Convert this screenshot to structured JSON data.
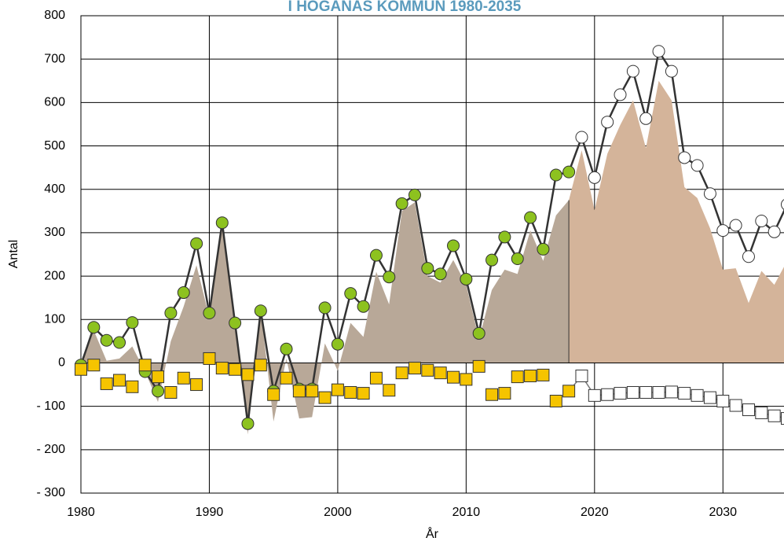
{
  "chart_data": {
    "type": "line",
    "title": "I HÖGANÄS KOMMUN 1980-2035",
    "x_label": "År",
    "y_label": "Antal",
    "x": [
      1980,
      1981,
      1982,
      1983,
      1984,
      1985,
      1986,
      1987,
      1988,
      1989,
      1990,
      1991,
      1992,
      1993,
      1994,
      1995,
      1996,
      1997,
      1998,
      1999,
      2000,
      2001,
      2002,
      2003,
      2004,
      2005,
      2006,
      2007,
      2008,
      2009,
      2010,
      2011,
      2012,
      2013,
      2014,
      2015,
      2016,
      2017,
      2018,
      2019,
      2020,
      2021,
      2022,
      2023,
      2024,
      2025,
      2026,
      2027,
      2028,
      2029,
      2030,
      2031,
      2032,
      2033,
      2034,
      2035
    ],
    "projection_start": 2019,
    "area": {
      "color_history": "#b8a898",
      "color_forecast": "#d4b49a",
      "values": [
        5,
        75,
        5,
        10,
        38,
        -20,
        -90,
        50,
        130,
        225,
        105,
        320,
        105,
        -165,
        125,
        -135,
        10,
        -128,
        -125,
        45,
        -18,
        92,
        60,
        210,
        135,
        350,
        370,
        200,
        185,
        237,
        180,
        55,
        168,
        215,
        205,
        305,
        235,
        340,
        375,
        490,
        352,
        482,
        548,
        605,
        495,
        650,
        605,
        405,
        380,
        310,
        215,
        218,
        138,
        212,
        180,
        235
      ]
    },
    "series": [
      {
        "marker": "circle",
        "color_history": "#8dc21f",
        "color_forecast": "#ffffff",
        "line": true,
        "values": [
          -5,
          82,
          52,
          47,
          93,
          -20,
          -65,
          115,
          162,
          275,
          115,
          323,
          92,
          -140,
          120,
          -65,
          32,
          -60,
          -60,
          127,
          43,
          160,
          130,
          248,
          198,
          367,
          387,
          218,
          205,
          270,
          193,
          68,
          237,
          290,
          240,
          335,
          262,
          433,
          440,
          520,
          427,
          555,
          618,
          672,
          563,
          718,
          672,
          473,
          455,
          390,
          305,
          317,
          245,
          327,
          302,
          365
        ]
      },
      {
        "marker": "square",
        "color_history": "#f5c400",
        "color_forecast": "#ffffff",
        "line": false,
        "values": [
          -15,
          -5,
          -48,
          -40,
          -55,
          -5,
          -32,
          -68,
          -35,
          -50,
          10,
          -12,
          -15,
          -27,
          -5,
          -73,
          -35,
          -65,
          -65,
          -80,
          -62,
          -68,
          -70,
          -35,
          -63,
          -23,
          -12,
          -17,
          -23,
          -33,
          -38,
          -8,
          -73,
          -70,
          -32,
          -30,
          -28,
          -88,
          -65,
          -30,
          -75,
          -73,
          -70,
          -68,
          -68,
          -68,
          -67,
          -70,
          -75,
          -80,
          -88,
          -98,
          -108,
          -115,
          -122,
          -128
        ]
      }
    ],
    "xlim": [
      1980,
      2035
    ],
    "xticks": [
      1980,
      1990,
      2000,
      2010,
      2020,
      2030
    ],
    "ylim": [
      -300,
      800
    ],
    "yticks": [
      {
        "value": -300,
        "label": "- 300"
      },
      {
        "value": -200,
        "label": "- 200"
      },
      {
        "value": -100,
        "label": "- 100"
      },
      0,
      100,
      200,
      300,
      400,
      500,
      600,
      700,
      800
    ],
    "grid": true
  }
}
